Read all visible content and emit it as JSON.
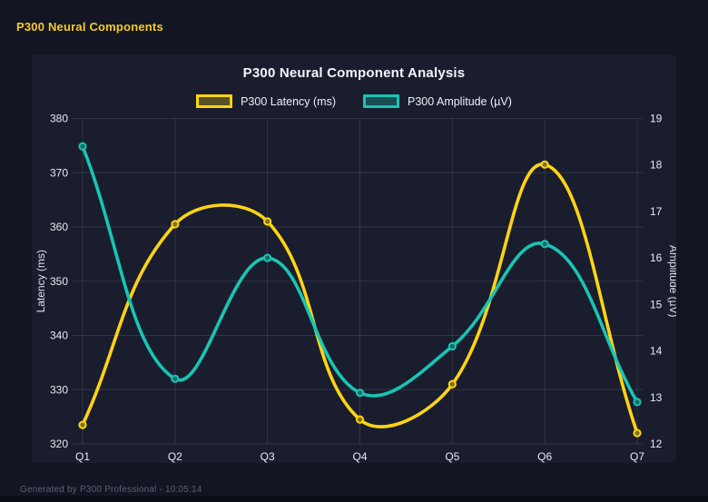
{
  "header": {
    "title": "P300 Neural Components"
  },
  "chart": {
    "title": "P300 Neural Component Analysis"
  },
  "chart_data": {
    "type": "line",
    "categories": [
      "Q1",
      "Q2",
      "Q3",
      "Q4",
      "Q5",
      "Q6",
      "Q7"
    ],
    "series": [
      {
        "name": "P300 Latency (ms)",
        "axis": "left",
        "color": "#ffd413",
        "values": [
          323.5,
          360.5,
          361,
          324.5,
          331,
          371.5,
          322
        ]
      },
      {
        "name": "P300 Amplitude (µV)",
        "axis": "right",
        "color": "#18c5b4",
        "values": [
          18.4,
          13.4,
          16.0,
          13.1,
          14.1,
          16.3,
          12.9
        ]
      }
    ],
    "left_axis": {
      "label": "Latency (ms)",
      "min": 320,
      "max": 380,
      "step": 10
    },
    "right_axis": {
      "label": "Amplitude (µV)",
      "min": 12,
      "max": 19,
      "step": 1
    },
    "title": "P300 Neural Component Analysis",
    "grid": true,
    "smooth": true,
    "legend_position": "top"
  },
  "footer": {
    "text": "Generated by P300 Professional - 10:05:14"
  },
  "colors": {
    "background": "#131622",
    "card": "#1a1d2e",
    "accent_yellow": "#ffd413",
    "accent_teal": "#18c5b4",
    "grid": "rgba(255,255,255,0.10)",
    "tick_text": "#e8ebf2",
    "title_text": "#f4f6fb",
    "footer_text": "#596172"
  }
}
